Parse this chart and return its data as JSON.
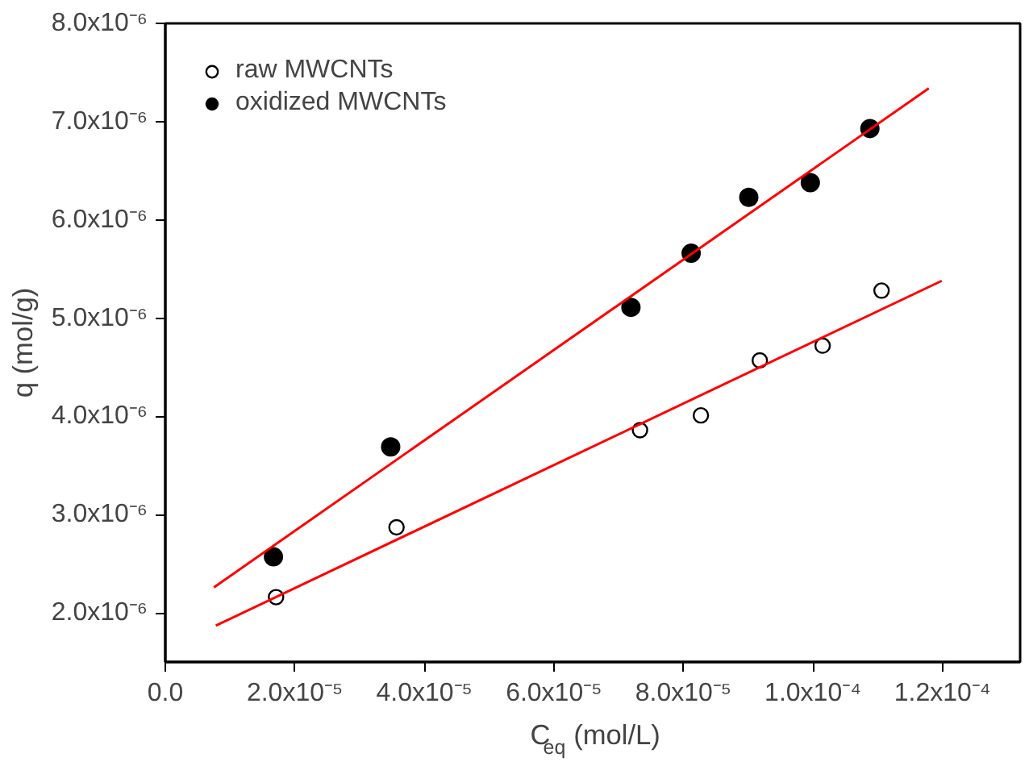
{
  "chart_data": {
    "type": "scatter",
    "xlabel": "C$_{eq}$ (mol/L)",
    "ylabel": "q (mol/g)",
    "xlim": [
      0,
      0.000132
    ],
    "ylim": [
      1.5e-06,
      8e-06
    ],
    "xticks": [
      {
        "value": 0,
        "label": "0.0"
      },
      {
        "value": 2e-05,
        "label": "2.0x10⁻⁵"
      },
      {
        "value": 4e-05,
        "label": "4.0x10⁻⁵"
      },
      {
        "value": 6e-05,
        "label": "6.0x10⁻⁵"
      },
      {
        "value": 8e-05,
        "label": "8.0x10⁻⁵"
      },
      {
        "value": 0.0001,
        "label": "1.0x10⁻⁴"
      },
      {
        "value": 0.00012,
        "label": "1.2x10⁻⁴"
      }
    ],
    "yticks": [
      {
        "value": 2e-06,
        "label": "2.0x10⁻⁶"
      },
      {
        "value": 3e-06,
        "label": "3.0x10⁻⁶"
      },
      {
        "value": 4e-06,
        "label": "4.0x10⁻⁶"
      },
      {
        "value": 5e-06,
        "label": "5.0x10⁻⁶"
      },
      {
        "value": 6e-06,
        "label": "6.0x10⁻⁶"
      },
      {
        "value": 7e-06,
        "label": "7.0x10⁻⁶"
      },
      {
        "value": 8e-06,
        "label": "8.0x10⁻⁶"
      }
    ],
    "grid": false,
    "legend": "top left",
    "series": [
      {
        "name": "raw MWCNTs",
        "color": "#000000",
        "marker": "open_circle",
        "x": [
          1.71e-05,
          3.57e-05,
          7.33e-05,
          8.27e-05,
          9.18e-05,
          0.0001015,
          0.0001106
        ],
        "values": [
          2.16e-06,
          2.87e-06,
          3.86e-06,
          4.01e-06,
          4.57e-06,
          4.72e-06,
          5.28e-06
        ]
      },
      {
        "name": "oxidized MWCNTs",
        "color": "#000000",
        "marker": "circle",
        "x": [
          1.67e-05,
          3.48e-05,
          7.19e-05,
          8.12e-05,
          9.01e-05,
          9.96e-05,
          0.0001088
        ],
        "values": [
          2.57e-06,
          3.69e-06,
          5.11e-06,
          5.66e-06,
          6.23e-06,
          6.38e-06,
          6.93e-06
        ]
      },
      {
        "type": "line",
        "color": "#ff0000",
        "x": [
          7.8e-06,
          0.0001199
        ],
        "values": [
          1.87e-06,
          5.38e-06
        ]
      },
      {
        "type": "line",
        "color": "#ff0000",
        "x": [
          7.5e-06,
          0.0001179
        ],
        "values": [
          2.26e-06,
          7.34e-06
        ]
      }
    ]
  }
}
